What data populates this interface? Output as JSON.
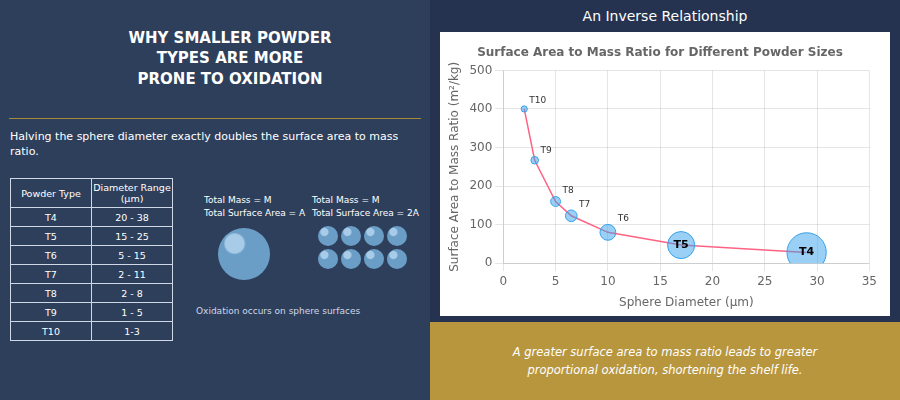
{
  "chart_data": {
    "type": "bubble",
    "panel_title": "WHY SMALLER POWDER\nTYPES ARE MORE\nPRONE TO OXIDATION",
    "subtitle": "Halving the sphere diameter exactly doubles the surface area to mass ratio.",
    "table": {
      "headers": [
        "Powder Type",
        "Diameter Range\n(μm)"
      ],
      "rows": [
        [
          "T4",
          "20 - 38"
        ],
        [
          "T5",
          "15 - 25"
        ],
        [
          "T6",
          "5 - 15"
        ],
        [
          "T7",
          "2 - 11"
        ],
        [
          "T8",
          "2 - 8"
        ],
        [
          "T9",
          "1 - 5"
        ],
        [
          "T10",
          "1-3"
        ]
      ]
    },
    "annotations": [
      "Total Mass = M",
      "Total Surface Area = A",
      "Total Mass = M",
      "Total Surface Area = 2A",
      "Oxidation occurs on sphere surfaces"
    ],
    "heading": "An Inverse Relationship",
    "footnote": "A greater surface area to mass ratio leads to greater\nproportional oxidation, shortening the shelf life.",
    "title": "Surface Area to Mass Ratio for Different Powder Sizes",
    "x_label": "Sphere Diameter (μm)",
    "y_label": "Surface Area to Mass Ratio (m²/kg)",
    "labels": [
      "T10",
      "T9",
      "T8",
      "T7",
      "T6",
      "T5",
      "T4"
    ],
    "x": [
      2,
      3,
      5,
      6.5,
      10,
      17,
      29
    ],
    "values": [
      400,
      267,
      160,
      123,
      80,
      47,
      28
    ],
    "sizes": [
      20,
      30,
      50,
      70,
      130,
      380,
      800
    ],
    "line_style": "solid",
    "xlim": [
      0,
      35
    ],
    "xticks": [
      0,
      5,
      10,
      15,
      20,
      25,
      30,
      35
    ],
    "ylim": [
      0,
      500
    ],
    "yticks": [
      0,
      100,
      200,
      300,
      400,
      500
    ],
    "grid": true
  }
}
